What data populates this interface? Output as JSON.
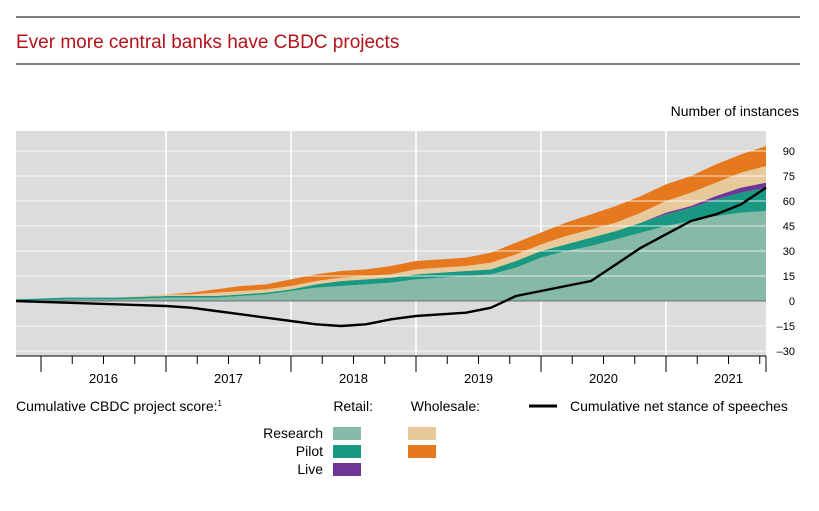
{
  "title": "Ever more central banks have CBDC projects",
  "unit_label": "Number of instances",
  "legend": {
    "score_label": "Cumulative CBDC project score:",
    "score_footnote": "1",
    "retail_label": "Retail:",
    "wholesale_label": "Wholesale:",
    "speeches_label": "Cumulative net stance of speeches",
    "rows": [
      "Research",
      "Pilot",
      "Live"
    ]
  },
  "colors": {
    "title": "#b5121b",
    "plot_bg": "#dcdcdc",
    "retail_research": "#86b9a6",
    "retail_pilot": "#1a9982",
    "retail_live": "#6e3797",
    "wholesale_research": "#e8c99b",
    "wholesale_pilot": "#e6781e",
    "speeches": "#000000"
  },
  "chart_data": {
    "type": "area",
    "x_unit": "year",
    "xlim": [
      2015.8,
      2021.8
    ],
    "ylim": [
      -33,
      102
    ],
    "yticks": [
      90,
      75,
      60,
      45,
      30,
      15,
      0,
      -15,
      -30
    ],
    "ytick_labels": [
      "90",
      "75",
      "60",
      "45",
      "30",
      "15",
      "0",
      "–15",
      "–30"
    ],
    "x_tick_labels": [
      {
        "label": "2016",
        "x": 2016.5
      },
      {
        "label": "2017",
        "x": 2017.5
      },
      {
        "label": "2018",
        "x": 2018.5
      },
      {
        "label": "2019",
        "x": 2019.5
      },
      {
        "label": "2020",
        "x": 2020.5
      },
      {
        "label": "2021",
        "x": 2021.5
      }
    ],
    "grid": true,
    "stack_order": [
      "Retail research",
      "Retail pilot",
      "Retail live",
      "Wholesale research",
      "Wholesale pilot"
    ],
    "x": [
      2015.8,
      2016.2,
      2016.6,
      2017.0,
      2017.2,
      2017.4,
      2017.6,
      2017.8,
      2018.0,
      2018.2,
      2018.4,
      2018.6,
      2018.8,
      2019.0,
      2019.2,
      2019.4,
      2019.6,
      2019.8,
      2020.0,
      2020.2,
      2020.4,
      2020.6,
      2020.8,
      2021.0,
      2021.2,
      2021.4,
      2021.6,
      2021.8
    ],
    "series": [
      {
        "name": "Retail research",
        "values": [
          0,
          1,
          1,
          2,
          2,
          2,
          3,
          4,
          6,
          8,
          9,
          10,
          11,
          13,
          14,
          15,
          16,
          20,
          26,
          30,
          33,
          37,
          41,
          45,
          48,
          51,
          53,
          54
        ]
      },
      {
        "name": "Retail pilot",
        "values": [
          1,
          1,
          1,
          1,
          1,
          1,
          1,
          1,
          1,
          2,
          3,
          3,
          3,
          3,
          3,
          3,
          3,
          4,
          4,
          4,
          5,
          5,
          6,
          7,
          8,
          10,
          12,
          14
        ]
      },
      {
        "name": "Retail live",
        "values": [
          0,
          0,
          0,
          0,
          0,
          0,
          0,
          0,
          0,
          0,
          0,
          0,
          0,
          0,
          0,
          0,
          0,
          0,
          0,
          0,
          0,
          0,
          0,
          1,
          1,
          2,
          3,
          3
        ]
      },
      {
        "name": "Wholesale research",
        "values": [
          0,
          0,
          0,
          1,
          1,
          2,
          2,
          2,
          2,
          2,
          2,
          2,
          2,
          3,
          3,
          3,
          4,
          4,
          4,
          5,
          5,
          5,
          6,
          7,
          8,
          8,
          9,
          10
        ]
      },
      {
        "name": "Wholesale pilot",
        "values": [
          0,
          0,
          0,
          0,
          1,
          2,
          3,
          3,
          4,
          4,
          4,
          4,
          5,
          5,
          5,
          5,
          6,
          7,
          7,
          8,
          9,
          10,
          10,
          10,
          10,
          11,
          11,
          12
        ]
      },
      {
        "name": "Cumulative net stance of speeches",
        "type": "line",
        "values": [
          0,
          -1,
          -2,
          -3,
          -4,
          -6,
          -8,
          -10,
          -12,
          -14,
          -15,
          -14,
          -11,
          -9,
          -8,
          -7,
          -4,
          3,
          6,
          9,
          12,
          22,
          32,
          40,
          48,
          52,
          58,
          68
        ]
      }
    ]
  }
}
